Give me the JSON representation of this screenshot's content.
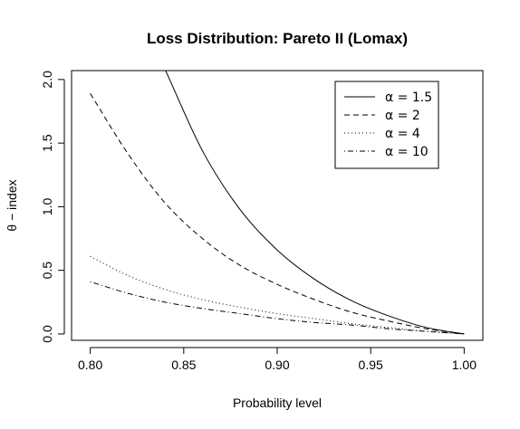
{
  "chart_data": {
    "type": "line",
    "title": "Loss Distribution: Pareto II (Lomax)",
    "xlabel": "Probability level",
    "ylabel": "θ − index",
    "xlim": [
      0.79,
      1.01
    ],
    "ylim": [
      -0.05,
      2.07
    ],
    "xticks": [
      0.8,
      0.85,
      0.9,
      0.95,
      1.0
    ],
    "xtick_labels": [
      "0.80",
      "0.85",
      "0.90",
      "0.95",
      "1.00"
    ],
    "yticks": [
      0.0,
      0.5,
      1.0,
      1.5,
      2.0
    ],
    "ytick_labels": [
      "0.0",
      "0.5",
      "1.0",
      "1.5",
      "2.0"
    ],
    "grid": false,
    "legend_position": "top-right",
    "x": [
      0.8,
      0.82,
      0.84,
      0.86,
      0.88,
      0.9,
      0.92,
      0.94,
      0.96,
      0.98,
      1.0
    ],
    "series": [
      {
        "name": "α = 1.5",
        "dash": "solid",
        "values": [
          null,
          null,
          2.08,
          1.44,
          0.98,
          0.66,
          0.43,
          0.26,
          0.14,
          0.05,
          0.0
        ]
      },
      {
        "name": "α = 2",
        "dash": "dashed",
        "values": [
          1.89,
          1.42,
          1.03,
          0.75,
          0.54,
          0.39,
          0.27,
          0.17,
          0.1,
          0.04,
          0.0
        ]
      },
      {
        "name": "α = 4",
        "dash": "dotted",
        "values": [
          0.61,
          0.46,
          0.35,
          0.27,
          0.21,
          0.16,
          0.12,
          0.08,
          0.05,
          0.02,
          0.0
        ]
      },
      {
        "name": "α = 10",
        "dash": "dotdash",
        "values": [
          0.41,
          0.32,
          0.25,
          0.2,
          0.16,
          0.12,
          0.09,
          0.07,
          0.04,
          0.02,
          0.0
        ]
      }
    ]
  }
}
